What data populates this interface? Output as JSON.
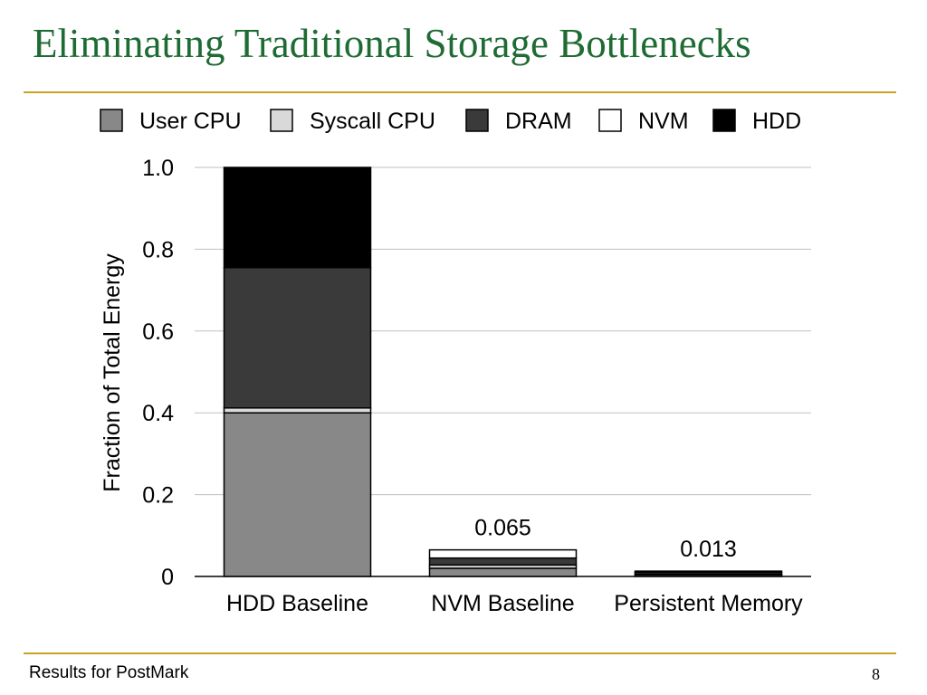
{
  "slide": {
    "title": "Eliminating Traditional Storage Bottlenecks",
    "footer": "Results for PostMark",
    "page_number": "8"
  },
  "chart_data": {
    "type": "bar",
    "stacked": true,
    "title": "",
    "xlabel": "",
    "ylabel": "Fraction of Total Energy",
    "ylim": [
      0,
      1.0
    ],
    "yticks": [
      0,
      0.2,
      0.4,
      0.6,
      0.8,
      1.0
    ],
    "ytick_labels": [
      "0",
      "0.2",
      "0.4",
      "0.6",
      "0.8",
      "1.0"
    ],
    "grid": true,
    "legend_position": "top",
    "categories": [
      "HDD Baseline",
      "NVM Baseline",
      "Persistent Memory"
    ],
    "series": [
      {
        "name": "User CPU",
        "color": "#888888",
        "values": [
          0.4,
          0.02,
          0.004
        ]
      },
      {
        "name": "Syscall CPU",
        "color": "#d9d9d9",
        "values": [
          0.012,
          0.008,
          0.001
        ]
      },
      {
        "name": "DRAM",
        "color": "#3a3a3a",
        "values": [
          0.343,
          0.017,
          0.005
        ]
      },
      {
        "name": "NVM",
        "color": "#ffffff",
        "values": [
          0.0,
          0.02,
          0.003
        ]
      },
      {
        "name": "HDD",
        "color": "#000000",
        "values": [
          0.245,
          0.0,
          0.0
        ]
      }
    ],
    "total_labels": [
      "",
      "0.065",
      "0.013"
    ]
  }
}
